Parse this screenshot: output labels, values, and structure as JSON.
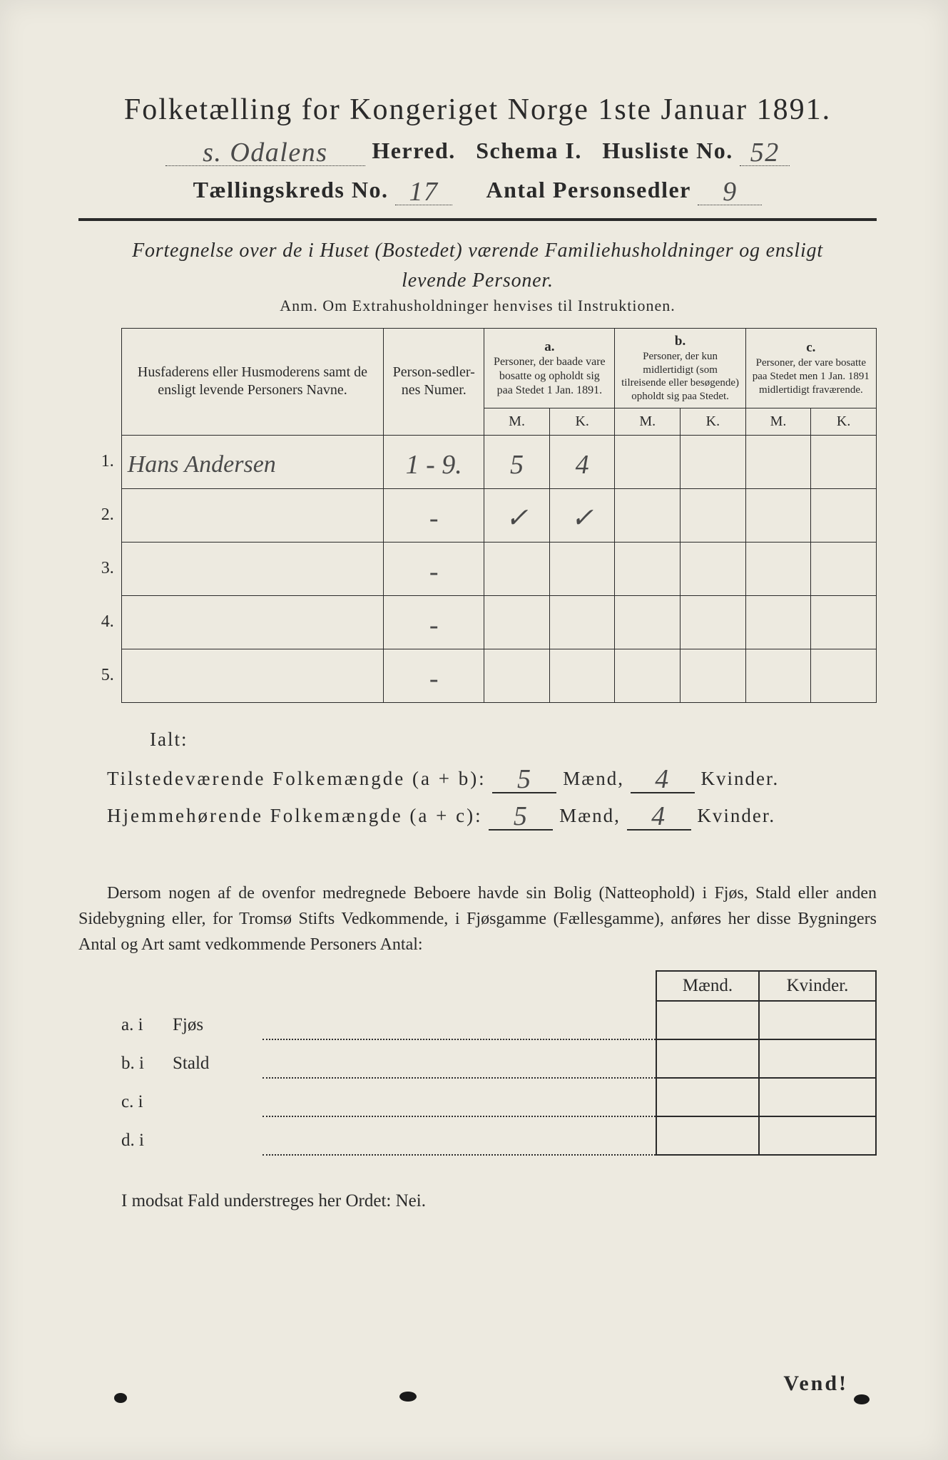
{
  "title": "Folketælling for Kongeriget Norge 1ste Januar 1891.",
  "header": {
    "herred_value": "s. Odalens",
    "herred_label": "Herred.",
    "schema_label": "Schema I.",
    "husliste_label": "Husliste No.",
    "husliste_value": "52",
    "kreds_label": "Tællingskreds No.",
    "kreds_value": "17",
    "antal_label": "Antal Personsedler",
    "antal_value": "9"
  },
  "subtitle_line1": "Fortegnelse over de i Huset (Bostedet) værende Familiehusholdninger og ensligt",
  "subtitle_line2": "levende Personer.",
  "anm": "Anm.  Om Extrahusholdninger henvises til Instruktionen.",
  "table_head": {
    "names": "Husfaderens eller Husmoderens samt de ensligt levende Personers Navne.",
    "numer": "Person-sedler-nes Numer.",
    "a_label": "a.",
    "a_text": "Personer, der baade vare bosatte og opholdt sig paa Stedet 1 Jan. 1891.",
    "b_label": "b.",
    "b_text": "Personer, der kun midlertidigt (som tilreisende eller besøgende) opholdt sig paa Stedet.",
    "c_label": "c.",
    "c_text": "Personer, der vare bosatte paa Stedet men 1 Jan. 1891 midlertidigt fraværende.",
    "m": "M.",
    "k": "K."
  },
  "rows": [
    {
      "n": "1.",
      "name": "Hans Andersen",
      "num": "1 - 9.",
      "am": "5",
      "ak": "4",
      "bm": "",
      "bk": "",
      "cm": "",
      "ck": ""
    },
    {
      "n": "2.",
      "name": "",
      "num": "-",
      "am": "✓",
      "ak": "✓",
      "bm": "",
      "bk": "",
      "cm": "",
      "ck": ""
    },
    {
      "n": "3.",
      "name": "",
      "num": "-",
      "am": "",
      "ak": "",
      "bm": "",
      "bk": "",
      "cm": "",
      "ck": ""
    },
    {
      "n": "4.",
      "name": "",
      "num": "-",
      "am": "",
      "ak": "",
      "bm": "",
      "bk": "",
      "cm": "",
      "ck": ""
    },
    {
      "n": "5.",
      "name": "",
      "num": "-",
      "am": "",
      "ak": "",
      "bm": "",
      "bk": "",
      "cm": "",
      "ck": ""
    }
  ],
  "totals": {
    "ialt": "Ialt:",
    "line1_label": "Tilstedeværende Folkemængde (a + b):",
    "line1_m": "5",
    "line1_k": "4",
    "line2_label": "Hjemmehørende Folkemængde (a + c):",
    "line2_m": "5",
    "line2_k": "4",
    "maend": "Mænd,",
    "kvinder": "Kvinder."
  },
  "paragraph": "Dersom nogen af de ovenfor medregnede Beboere havde sin Bolig (Natteophold) i Fjøs, Stald eller anden Sidebygning eller, for Tromsø Stifts Vedkommende, i Fjøsgamme (Fællesgamme), anføres her disse Bygningers Antal og Art samt vedkommende Personers Antal:",
  "lower": {
    "maend": "Mænd.",
    "kvinder": "Kvinder.",
    "rows": [
      {
        "lead": "a.  i",
        "label": "Fjøs"
      },
      {
        "lead": "b.  i",
        "label": "Stald"
      },
      {
        "lead": "c.  i",
        "label": ""
      },
      {
        "lead": "d.  i",
        "label": ""
      }
    ]
  },
  "final": "I modsat Fald understreges her Ordet: Nei.",
  "vend": "Vend!",
  "colors": {
    "page_bg": "#edeae0",
    "ink": "#2a2a2a",
    "hand_ink": "#4a4a4a"
  }
}
